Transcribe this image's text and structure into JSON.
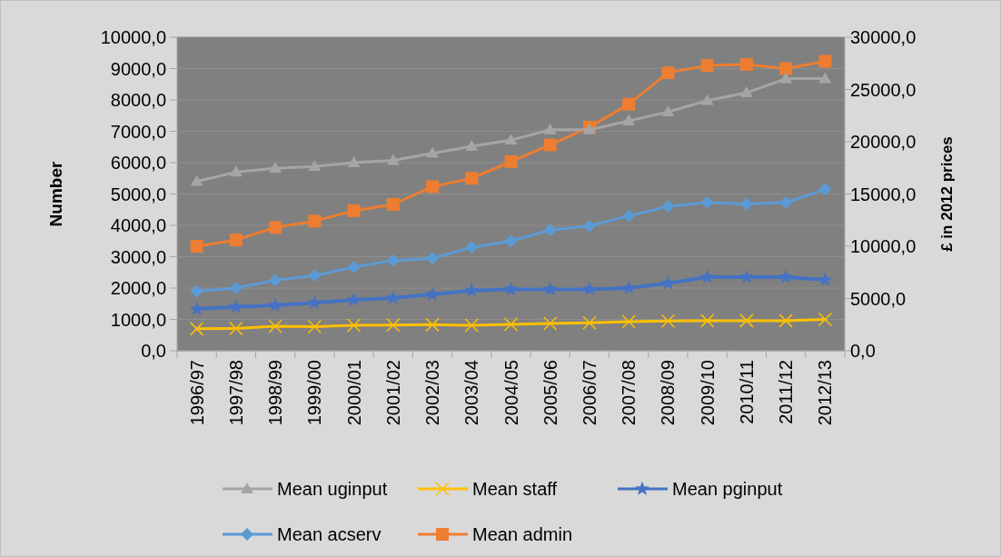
{
  "chart_data": {
    "type": "line",
    "categories": [
      "1996/97",
      "1997/98",
      "1998/99",
      "1999/00",
      "2000/01",
      "2001/02",
      "2002/03",
      "2003/04",
      "2004/05",
      "2005/06",
      "2006/07",
      "2007/08",
      "2008/09",
      "2009/10",
      "2010/11",
      "2011/12",
      "2012/13"
    ],
    "series": [
      {
        "name": "Mean uginput",
        "color": "#a5a5a5",
        "marker": "triangle",
        "values": [
          5400,
          5700,
          5820,
          5880,
          6000,
          6070,
          6300,
          6520,
          6720,
          7050,
          7050,
          7330,
          7620,
          7980,
          8230,
          8680,
          8680
        ]
      },
      {
        "name": "Mean staff",
        "color": "#ffc000",
        "marker": "cross",
        "values": [
          700,
          710,
          780,
          770,
          810,
          820,
          830,
          810,
          840,
          870,
          890,
          930,
          950,
          960,
          960,
          960,
          1000
        ]
      },
      {
        "name": "Mean pginput",
        "color": "#4472c4",
        "marker": "star",
        "values": [
          1330,
          1400,
          1450,
          1530,
          1620,
          1680,
          1800,
          1920,
          1960,
          1960,
          1960,
          2000,
          2150,
          2350,
          2350,
          2350,
          2260
        ]
      },
      {
        "name": "Mean acserv",
        "color": "#5b9bd5",
        "marker": "diamond",
        "values": [
          1900,
          2000,
          2250,
          2400,
          2670,
          2880,
          2950,
          3300,
          3500,
          3850,
          3980,
          4300,
          4600,
          4730,
          4680,
          4730,
          5150
        ]
      },
      {
        "name": "Mean admin",
        "color": "#ed7d31",
        "marker": "square",
        "axis": "y2",
        "values": [
          10000,
          10600,
          11800,
          12400,
          13400,
          14000,
          15700,
          16500,
          18100,
          19700,
          21400,
          23600,
          26600,
          27300,
          27400,
          27000,
          27700
        ]
      }
    ],
    "ylabel": "Number",
    "y2label": "£ in 2012 prices",
    "ylim": [
      0,
      10000
    ],
    "yticks": [
      {
        "value": 0,
        "label": "0,0"
      },
      {
        "value": 1000,
        "label": "1000,0"
      },
      {
        "value": 2000,
        "label": "2000,0"
      },
      {
        "value": 3000,
        "label": "3000,0"
      },
      {
        "value": 4000,
        "label": "4000,0"
      },
      {
        "value": 5000,
        "label": "5000,0"
      },
      {
        "value": 6000,
        "label": "6000,0"
      },
      {
        "value": 7000,
        "label": "7000,0"
      },
      {
        "value": 8000,
        "label": "8000,0"
      },
      {
        "value": 9000,
        "label": "9000,0"
      },
      {
        "value": 10000,
        "label": "10000,0"
      }
    ],
    "y2lim": [
      0,
      30000
    ],
    "y2ticks": [
      {
        "value": 0,
        "label": "0,0"
      },
      {
        "value": 5000,
        "label": "5000,0"
      },
      {
        "value": 10000,
        "label": "10000,0"
      },
      {
        "value": 15000,
        "label": "15000,0"
      },
      {
        "value": 20000,
        "label": "20000,0"
      },
      {
        "value": 25000,
        "label": "25000,0"
      },
      {
        "value": 30000,
        "label": "30000,0"
      }
    ],
    "grid": "y",
    "legend": "bottom",
    "line_style": "solid"
  }
}
